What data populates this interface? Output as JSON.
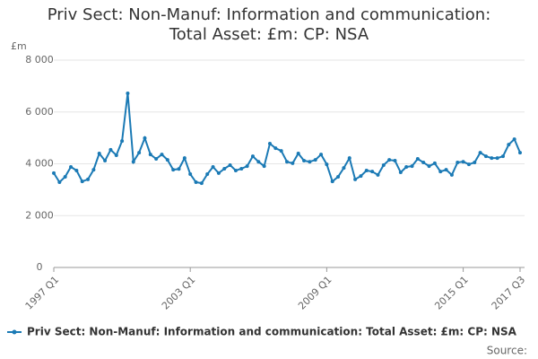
{
  "chart_data": {
    "type": "line",
    "title": "Priv Sect: Non-Manuf: Information and communication:\nTotal Asset: £m: CP: NSA",
    "ylabel": "£m",
    "source": "Source:",
    "categories": [
      "1997 Q1",
      null,
      null,
      null,
      null,
      null,
      null,
      null,
      null,
      null,
      null,
      null,
      null,
      null,
      null,
      null,
      null,
      null,
      null,
      null,
      null,
      null,
      null,
      null,
      "2003 Q1",
      null,
      null,
      null,
      null,
      null,
      null,
      null,
      null,
      null,
      null,
      null,
      null,
      null,
      null,
      null,
      null,
      null,
      null,
      null,
      null,
      null,
      null,
      null,
      "2009 Q1",
      null,
      null,
      null,
      null,
      null,
      null,
      null,
      null,
      null,
      null,
      null,
      null,
      null,
      null,
      null,
      null,
      null,
      null,
      null,
      null,
      null,
      null,
      null,
      "2015 Q1",
      null,
      null,
      null,
      null,
      null,
      null,
      null,
      null,
      null,
      "2017 Q3"
    ],
    "series": [
      {
        "name": "Priv Sect: Non-Manuf: Information and communication: Total Asset: £m: CP: NSA",
        "color": "#1b7ab5",
        "values": [
          3640,
          3290,
          3500,
          3880,
          3740,
          3320,
          3400,
          3770,
          4400,
          4120,
          4540,
          4330,
          4880,
          6720,
          4080,
          4430,
          4990,
          4360,
          4190,
          4360,
          4150,
          3770,
          3800,
          4220,
          3600,
          3290,
          3250,
          3600,
          3880,
          3640,
          3810,
          3950,
          3740,
          3810,
          3910,
          4290,
          4080,
          3910,
          4780,
          4600,
          4500,
          4080,
          4020,
          4400,
          4120,
          4080,
          4150,
          4360,
          3980,
          3320,
          3500,
          3840,
          4220,
          3400,
          3530,
          3740,
          3700,
          3570,
          3950,
          4150,
          4120,
          3670,
          3880,
          3910,
          4190,
          4050,
          3910,
          4020,
          3700,
          3770,
          3570,
          4050,
          4080,
          3980,
          4050,
          4430,
          4290,
          4220,
          4220,
          4290,
          4740,
          4950,
          4430
        ]
      }
    ],
    "ylim": [
      0,
      8000
    ],
    "yticks": [
      0,
      {
        "value": 2000,
        "label": "2 000"
      },
      {
        "value": 4000,
        "label": "4 000"
      },
      {
        "value": 6000,
        "label": "6 000"
      },
      {
        "value": 8000,
        "label": "8 000"
      }
    ],
    "grid": true
  }
}
